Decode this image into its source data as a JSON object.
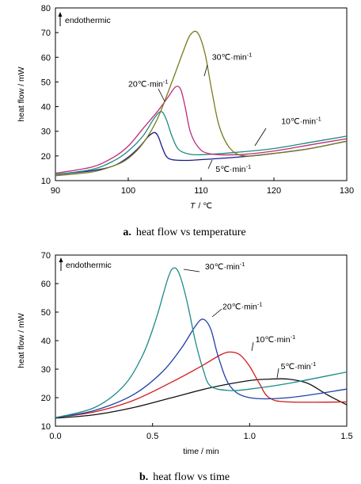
{
  "chart_data": [
    {
      "type": "line",
      "caption_prefix": "a.",
      "caption": "heat flow vs temperature",
      "xlabel_var": "T",
      "xlabel_unit": "/ ℃",
      "ylabel": "heat flow / mW",
      "xlim": [
        90,
        130
      ],
      "ylim": [
        10,
        80
      ],
      "xticks": [
        "90",
        "100",
        "110",
        "120",
        "130"
      ],
      "yticks": [
        "10",
        "20",
        "30",
        "40",
        "50",
        "60",
        "70",
        "80"
      ],
      "note": "endothermic",
      "colors": {
        "5": "#1a1a8c",
        "10": "#1e8a7a",
        "20": "#c0297f",
        "30": "#7a7a1e"
      },
      "series": [
        {
          "name": "5℃·min⁻¹",
          "color": "#1a1a8c",
          "x": [
            90,
            95,
            98,
            100,
            101.5,
            102.8,
            103.6,
            104.1,
            104.6,
            105.2,
            106,
            108,
            110,
            115,
            120,
            125,
            130
          ],
          "y": [
            12.5,
            14,
            16,
            19.5,
            23.5,
            28,
            29.5,
            28,
            24,
            20,
            18.5,
            18.2,
            18.5,
            19.5,
            21,
            23,
            26
          ]
        },
        {
          "name": "10℃·min⁻¹",
          "color": "#1e8a7a",
          "x": [
            90,
            95,
            98,
            100,
            102,
            103.5,
            104.5,
            105.2,
            106,
            106.8,
            108,
            110,
            115,
            120,
            125,
            130
          ],
          "y": [
            12.5,
            14.5,
            18,
            22,
            28,
            35,
            38,
            35,
            28,
            23,
            21,
            20.5,
            21.5,
            23,
            25.5,
            28
          ]
        },
        {
          "name": "20℃·min⁻¹",
          "color": "#c0297f",
          "x": [
            90,
            95,
            98,
            100,
            102,
            104,
            105.5,
            106.5,
            107.2,
            107.8,
            108.5,
            109.5,
            111,
            115,
            120,
            125,
            130
          ],
          "y": [
            13,
            15.5,
            19.5,
            24,
            31,
            38,
            44,
            48,
            47,
            40,
            30,
            24,
            21,
            20.5,
            22,
            24.5,
            27
          ]
        },
        {
          "name": "30℃·min⁻¹",
          "color": "#7a7a1e",
          "x": [
            90,
            95,
            98,
            100,
            102,
            104,
            106,
            107.5,
            108.5,
            109.5,
            110.5,
            111.5,
            112.5,
            114,
            116,
            120,
            125,
            130
          ],
          "y": [
            12,
            13.5,
            16,
            19,
            25,
            35,
            50,
            62,
            69,
            70,
            62,
            46,
            32,
            23,
            20,
            21,
            23,
            26
          ]
        }
      ],
      "labels": [
        {
          "series": "30",
          "text": "30℃·min",
          "x": 111.5,
          "y": 59
        },
        {
          "series": "20",
          "text": "20℃·min",
          "x": 100,
          "y": 48
        },
        {
          "series": "10",
          "text": "10℃·min",
          "x": 121,
          "y": 33
        },
        {
          "series": "5",
          "text": "5℃·min",
          "x": 112,
          "y": 13.5
        }
      ]
    },
    {
      "type": "line",
      "caption_prefix": "b.",
      "caption": "heat flow vs time",
      "xlabel": "time / min",
      "ylabel": "heat flow / mW",
      "xlim": [
        0,
        1.5
      ],
      "ylim": [
        10,
        70
      ],
      "xticks": [
        "0.0",
        "0.5",
        "1.0",
        "1.5"
      ],
      "yticks": [
        "10",
        "20",
        "30",
        "40",
        "50",
        "60",
        "70"
      ],
      "note": "endothermic",
      "colors": {
        "5": "#111111",
        "10": "#d11a1a",
        "20": "#1f3fa8",
        "30": "#1e8a8a"
      },
      "series": [
        {
          "name": "5℃·min⁻¹",
          "color": "#111111",
          "x": [
            0,
            0.2,
            0.4,
            0.6,
            0.8,
            1.0,
            1.1,
            1.2,
            1.3,
            1.4,
            1.5
          ],
          "y": [
            12.8,
            14,
            16.5,
            20,
            23.5,
            26,
            26.5,
            26.5,
            25,
            21,
            17.5
          ]
        },
        {
          "name": "10℃·min⁻¹",
          "color": "#d11a1a",
          "x": [
            0,
            0.2,
            0.4,
            0.6,
            0.75,
            0.85,
            0.9,
            0.95,
            1.0,
            1.05,
            1.1,
            1.2,
            1.5
          ],
          "y": [
            13,
            15,
            19,
            25.5,
            31,
            35,
            36,
            35,
            31,
            25,
            20,
            18.5,
            18.5
          ]
        },
        {
          "name": "20℃·min⁻¹",
          "color": "#1f3fa8",
          "x": [
            0,
            0.2,
            0.4,
            0.55,
            0.65,
            0.72,
            0.76,
            0.8,
            0.84,
            0.9,
            1.0,
            1.2,
            1.5
          ],
          "y": [
            13,
            15.5,
            21,
            29,
            37.5,
            45,
            47.5,
            44,
            34,
            24,
            20,
            20,
            23
          ]
        },
        {
          "name": "30℃·min⁻¹",
          "color": "#1e8a8a",
          "x": [
            0,
            0.2,
            0.35,
            0.45,
            0.52,
            0.58,
            0.61,
            0.64,
            0.68,
            0.72,
            0.76,
            0.8,
            0.9,
            1.0,
            1.2,
            1.5
          ],
          "y": [
            13,
            16.5,
            24,
            35,
            48,
            62,
            65.5,
            63,
            53,
            40,
            30,
            24,
            22.5,
            23,
            25,
            29
          ]
        }
      ],
      "labels": [
        {
          "series": "30",
          "text": "30℃·min",
          "x": 0.77,
          "y": 65
        },
        {
          "series": "20",
          "text": "20℃·min",
          "x": 0.86,
          "y": 51
        },
        {
          "series": "10",
          "text": "10℃·min",
          "x": 1.03,
          "y": 39.5
        },
        {
          "series": "5",
          "text": "5℃·min",
          "x": 1.16,
          "y": 30
        }
      ]
    }
  ]
}
